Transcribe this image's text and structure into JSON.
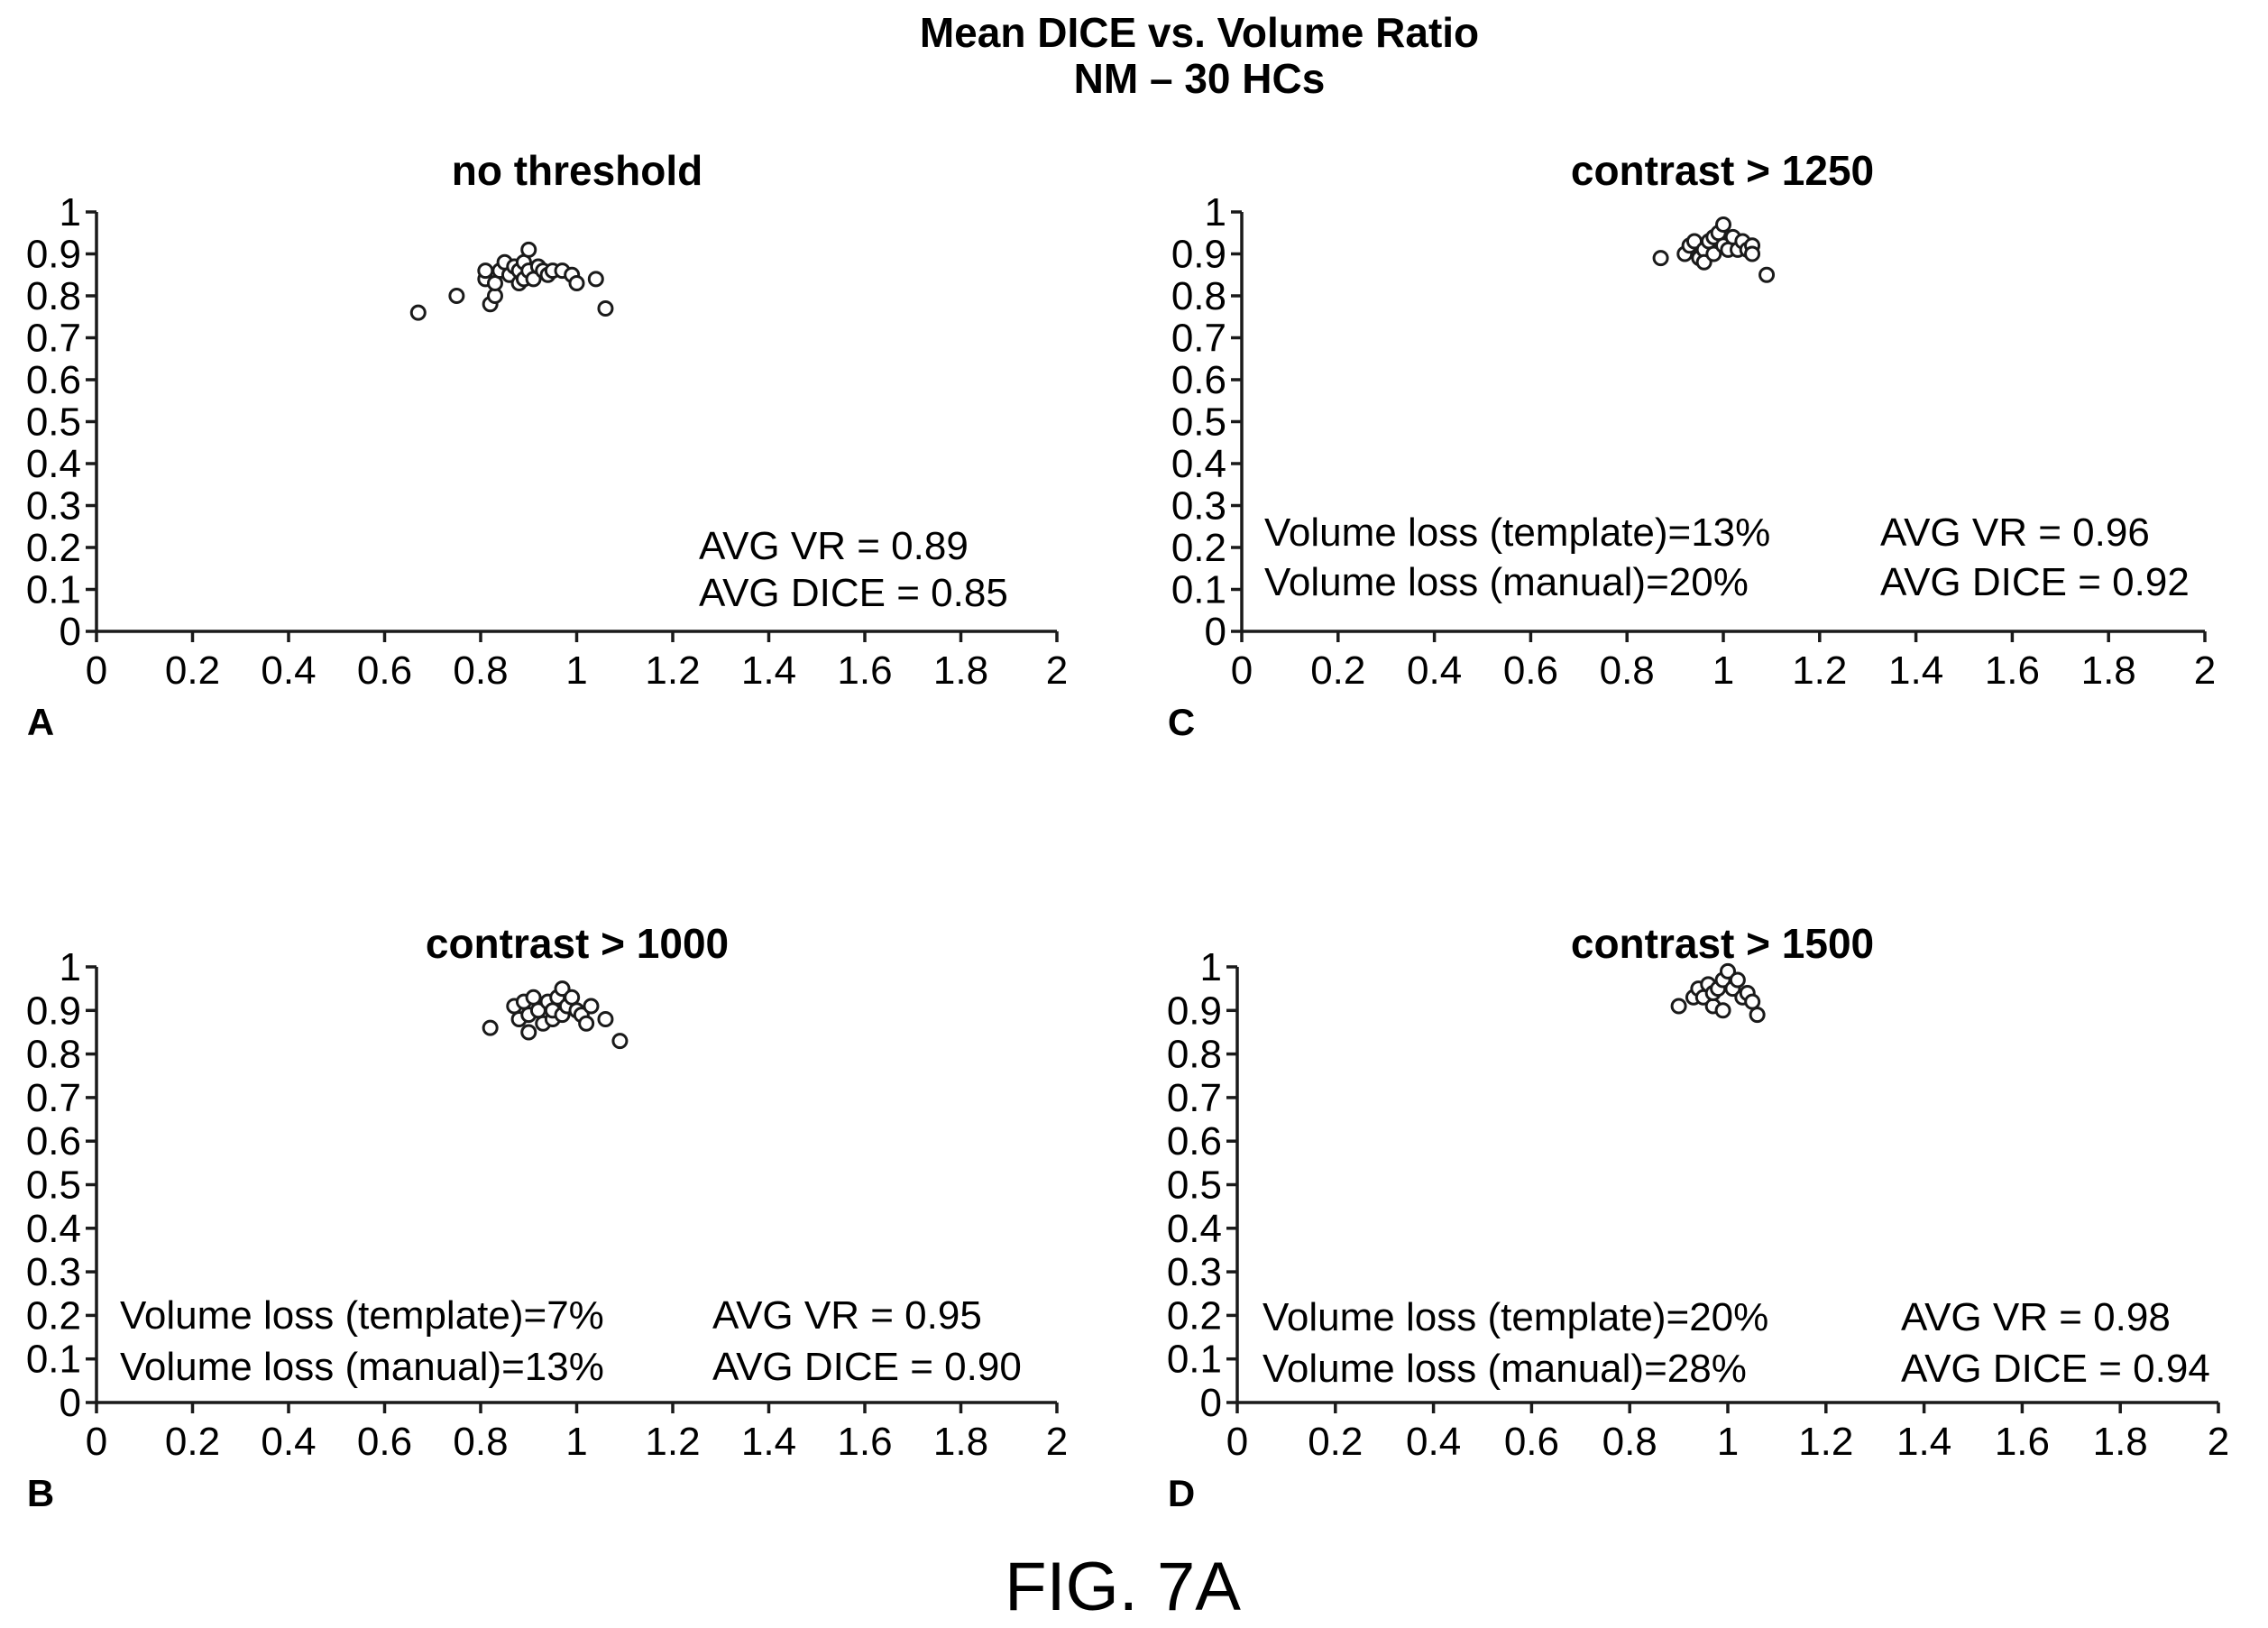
{
  "title": "Mean DICE vs. Volume Ratio",
  "subtitle": "NM – 30 HCs",
  "figure_label": "FIG. 7A",
  "chart_data": [
    {
      "panel": "A",
      "type": "scatter",
      "title": "no threshold",
      "xlim": [
        0,
        2
      ],
      "ylim": [
        0,
        1
      ],
      "xticks": [
        "0",
        "0.2",
        "0.4",
        "0.6",
        "0.8",
        "1",
        "1.2",
        "1.4",
        "1.6",
        "1.8",
        "2"
      ],
      "yticks": [
        "0",
        "0.1",
        "0.2",
        "0.3",
        "0.4",
        "0.5",
        "0.6",
        "0.7",
        "0.8",
        "0.9",
        "1"
      ],
      "annotations_left": [],
      "annotations_right": [
        "AVG VR = 0.89",
        "AVG DICE = 0.85"
      ],
      "points": [
        [
          0.67,
          0.76
        ],
        [
          0.75,
          0.8
        ],
        [
          0.81,
          0.84
        ],
        [
          0.81,
          0.86
        ],
        [
          0.82,
          0.78
        ],
        [
          0.83,
          0.8
        ],
        [
          0.83,
          0.83
        ],
        [
          0.84,
          0.86
        ],
        [
          0.85,
          0.88
        ],
        [
          0.86,
          0.85
        ],
        [
          0.87,
          0.87
        ],
        [
          0.88,
          0.83
        ],
        [
          0.88,
          0.86
        ],
        [
          0.89,
          0.84
        ],
        [
          0.89,
          0.88
        ],
        [
          0.9,
          0.86
        ],
        [
          0.9,
          0.91
        ],
        [
          0.91,
          0.84
        ],
        [
          0.92,
          0.87
        ],
        [
          0.93,
          0.86
        ],
        [
          0.94,
          0.85
        ],
        [
          0.95,
          0.86
        ],
        [
          0.97,
          0.86
        ],
        [
          0.99,
          0.85
        ],
        [
          1.0,
          0.83
        ],
        [
          1.04,
          0.84
        ],
        [
          1.06,
          0.77
        ]
      ]
    },
    {
      "panel": "C",
      "type": "scatter",
      "title": "contrast > 1250",
      "xlim": [
        0,
        2
      ],
      "ylim": [
        0,
        1
      ],
      "xticks": [
        "0",
        "0.2",
        "0.4",
        "0.6",
        "0.8",
        "1",
        "1.2",
        "1.4",
        "1.6",
        "1.8",
        "2"
      ],
      "yticks": [
        "0",
        "0.1",
        "0.2",
        "0.3",
        "0.4",
        "0.5",
        "0.6",
        "0.7",
        "0.8",
        "0.9",
        "1"
      ],
      "annotations_left": [
        "Volume loss (template)=13%",
        "Volume loss (manual)=20%"
      ],
      "annotations_right": [
        "AVG VR = 0.96",
        "AVG DICE = 0.92"
      ],
      "points": [
        [
          0.87,
          0.89
        ],
        [
          0.92,
          0.9
        ],
        [
          0.93,
          0.92
        ],
        [
          0.94,
          0.93
        ],
        [
          0.95,
          0.89
        ],
        [
          0.96,
          0.91
        ],
        [
          0.96,
          0.88
        ],
        [
          0.97,
          0.93
        ],
        [
          0.98,
          0.9
        ],
        [
          0.98,
          0.94
        ],
        [
          0.99,
          0.95
        ],
        [
          1.0,
          0.92
        ],
        [
          1.0,
          0.97
        ],
        [
          1.01,
          0.91
        ],
        [
          1.02,
          0.94
        ],
        [
          1.03,
          0.91
        ],
        [
          1.04,
          0.93
        ],
        [
          1.05,
          0.91
        ],
        [
          1.06,
          0.92
        ],
        [
          1.06,
          0.9
        ],
        [
          1.09,
          0.85
        ]
      ]
    },
    {
      "panel": "B",
      "type": "scatter",
      "title": "contrast > 1000",
      "xlim": [
        0,
        2
      ],
      "ylim": [
        0,
        1
      ],
      "xticks": [
        "0",
        "0.2",
        "0.4",
        "0.6",
        "0.8",
        "1",
        "1.2",
        "1.4",
        "1.6",
        "1.8",
        "2"
      ],
      "yticks": [
        "0",
        "0.1",
        "0.2",
        "0.3",
        "0.4",
        "0.5",
        "0.6",
        "0.7",
        "0.8",
        "0.9",
        "1"
      ],
      "annotations_left": [
        "Volume loss (template)=7%",
        "Volume loss (manual)=13%"
      ],
      "annotations_right": [
        "AVG VR = 0.95",
        "AVG DICE = 0.90"
      ],
      "points": [
        [
          0.82,
          0.86
        ],
        [
          0.87,
          0.91
        ],
        [
          0.88,
          0.88
        ],
        [
          0.89,
          0.92
        ],
        [
          0.9,
          0.85
        ],
        [
          0.9,
          0.89
        ],
        [
          0.91,
          0.93
        ],
        [
          0.92,
          0.9
        ],
        [
          0.93,
          0.87
        ],
        [
          0.94,
          0.92
        ],
        [
          0.95,
          0.88
        ],
        [
          0.95,
          0.9
        ],
        [
          0.96,
          0.93
        ],
        [
          0.97,
          0.95
        ],
        [
          0.97,
          0.89
        ],
        [
          0.98,
          0.91
        ],
        [
          0.99,
          0.93
        ],
        [
          1.0,
          0.9
        ],
        [
          1.01,
          0.89
        ],
        [
          1.02,
          0.87
        ],
        [
          1.03,
          0.91
        ],
        [
          1.06,
          0.88
        ],
        [
          1.09,
          0.83
        ]
      ]
    },
    {
      "panel": "D",
      "type": "scatter",
      "title": "contrast > 1500",
      "xlim": [
        0,
        2
      ],
      "ylim": [
        0,
        1
      ],
      "xticks": [
        "0",
        "0.2",
        "0.4",
        "0.6",
        "0.8",
        "1",
        "1.2",
        "1.4",
        "1.6",
        "1.8",
        "2"
      ],
      "yticks": [
        "0",
        "0.1",
        "0.2",
        "0.3",
        "0.4",
        "0.5",
        "0.6",
        "0.7",
        "0.8",
        "0.9",
        "1"
      ],
      "annotations_left": [
        "Volume loss (template)=20%",
        "Volume loss (manual)=28%"
      ],
      "annotations_right": [
        "AVG VR = 0.98",
        "AVG DICE = 0.94"
      ],
      "points": [
        [
          0.9,
          0.91
        ],
        [
          0.93,
          0.93
        ],
        [
          0.94,
          0.95
        ],
        [
          0.95,
          0.93
        ],
        [
          0.96,
          0.96
        ],
        [
          0.97,
          0.91
        ],
        [
          0.97,
          0.94
        ],
        [
          0.98,
          0.95
        ],
        [
          0.99,
          0.9
        ],
        [
          0.99,
          0.97
        ],
        [
          1.0,
          0.99
        ],
        [
          1.01,
          0.95
        ],
        [
          1.02,
          0.97
        ],
        [
          1.03,
          0.93
        ],
        [
          1.04,
          0.94
        ],
        [
          1.05,
          0.92
        ],
        [
          1.06,
          0.89
        ]
      ]
    }
  ]
}
